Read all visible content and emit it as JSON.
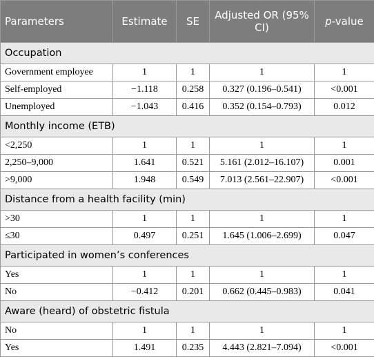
{
  "table": {
    "header": [
      "Parameters",
      "Estimate",
      "SE",
      "Adjusted OR (95% CI)",
      "p-value"
    ],
    "sections": [
      {
        "title": "Occupation",
        "rows": [
          [
            "Government employee",
            "1",
            "1",
            "1",
            "1"
          ],
          [
            "Self-employed",
            "−1.118",
            "0.258",
            "0.327 (0.196–0.541)",
            "<0.001"
          ],
          [
            "Unemployed",
            "−1.043",
            "0.416",
            "0.352 (0.154–0.793)",
            "0.012"
          ]
        ]
      },
      {
        "title": "Monthly income (ETB)",
        "rows": [
          [
            "<2,250",
            "1",
            "1",
            "1",
            "1"
          ],
          [
            "2,250–9,000",
            "1.641",
            "0.521",
            "5.161 (2.012–16.107)",
            "0.001"
          ],
          [
            ">9,000",
            "1.948",
            "0.549",
            "7.013 (2.561–22.907)",
            "<0.001"
          ]
        ]
      },
      {
        "title": "Distance from a health facility (min)",
        "rows": [
          [
            ">30",
            "1",
            "1",
            "1",
            "1"
          ],
          [
            "≤30",
            "0.497",
            "0.251",
            "1.645 (1.006–2.699)",
            "0.047"
          ]
        ]
      },
      {
        "title": "Participated in women’s conferences",
        "rows": [
          [
            "Yes",
            "1",
            "1",
            "1",
            "1"
          ],
          [
            "No",
            "−0.412",
            "0.201",
            "0.662 (0.445–0.983)",
            "0.041"
          ]
        ]
      },
      {
        "title": "Aware (heard) of obstetric fistula",
        "rows": [
          [
            "No",
            "1",
            "1",
            "1",
            "1"
          ],
          [
            "Yes",
            "1.491",
            "0.235",
            "4.443 (2.821–7.094)",
            "<0.001"
          ]
        ]
      }
    ]
  }
}
